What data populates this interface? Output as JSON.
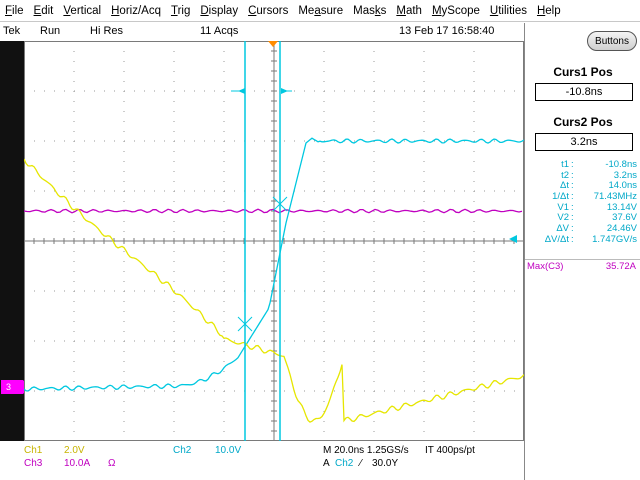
{
  "menu": {
    "items": [
      {
        "pre": "",
        "ul": "F",
        "post": "ile"
      },
      {
        "pre": "",
        "ul": "E",
        "post": "dit"
      },
      {
        "pre": "",
        "ul": "V",
        "post": "ertical"
      },
      {
        "pre": "",
        "ul": "H",
        "post": "oriz/Acq"
      },
      {
        "pre": "",
        "ul": "T",
        "post": "rig"
      },
      {
        "pre": "",
        "ul": "D",
        "post": "isplay"
      },
      {
        "pre": "",
        "ul": "C",
        "post": "ursors"
      },
      {
        "pre": "Me",
        "ul": "a",
        "post": "sure"
      },
      {
        "pre": "Mas",
        "ul": "k",
        "post": "s"
      },
      {
        "pre": "",
        "ul": "M",
        "post": "ath"
      },
      {
        "pre": "",
        "ul": "M",
        "post": "yScope"
      },
      {
        "pre": "",
        "ul": "U",
        "post": "tilities"
      },
      {
        "pre": "",
        "ul": "H",
        "post": "elp"
      }
    ]
  },
  "status": {
    "brand": "Tek",
    "run": "Run",
    "mode": "Hi Res",
    "acqs": "11 Acqs",
    "datetime": "13 Feb 17 16:58:40"
  },
  "markers": {
    "ch3_label": "3"
  },
  "panel": {
    "buttons_label": "Buttons",
    "curs1_title": "Curs1 Pos",
    "curs1_value": "-10.8ns",
    "curs2_title": "Curs2 Pos",
    "curs2_value": "3.2ns",
    "readouts": [
      {
        "k": "t1",
        "v": "-10.8ns"
      },
      {
        "k": "t2",
        "v": "3.2ns"
      },
      {
        "k": "Δt",
        "v": "14.0ns"
      },
      {
        "k": "1/Δt",
        "v": "71.43MHz"
      },
      {
        "k": "V1",
        "v": "13.14V"
      },
      {
        "k": "V2",
        "v": "37.6V"
      },
      {
        "k": "ΔV",
        "v": "24.46V"
      },
      {
        "k": "ΔV/Δt",
        "v": "1.747GV/s"
      }
    ],
    "max_label": "Max(C3)",
    "max_value": "35.72A"
  },
  "bottom": {
    "ch1_label": "Ch1",
    "ch1_scale": "2.0V",
    "ch3_label": "Ch3",
    "ch3_scale": "10.0A",
    "ch3_unit": "Ω",
    "ch2_label": "Ch2",
    "ch2_scale": "10.0V",
    "timebase": "M 20.0ns 1.25GS/s",
    "interval": "IT 400ps/pt",
    "trigger_mode": "A",
    "trigger_source": "Ch2",
    "trigger_slope": "⁄",
    "trigger_level": "30.0Y"
  },
  "colors": {
    "ch1": "#e6e600",
    "ch2": "#00c8e0",
    "ch3": "#c000c0",
    "cursor": "#00c8e0"
  }
}
